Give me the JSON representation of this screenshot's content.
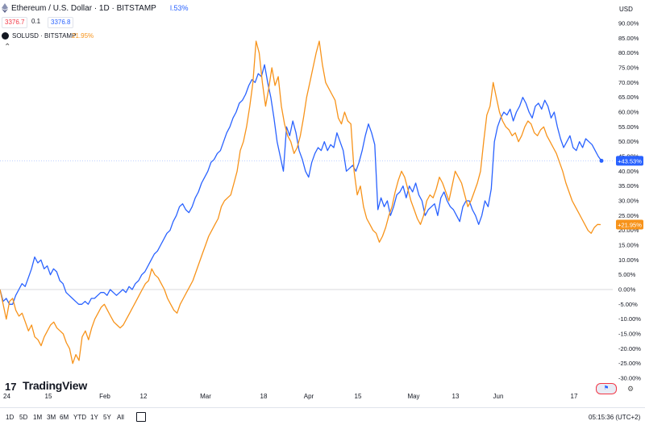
{
  "header": {
    "title": "Ethereum / U.S. Dollar · 1D · BITSTAMP",
    "change": "l.53%",
    "sell_price": "3376.7",
    "spread": "0.1",
    "buy_price": "3376.8",
    "currency": "USD"
  },
  "compare": {
    "symbol": "SOLUSD · BITSTAMP",
    "change": "21.95%"
  },
  "logo": {
    "text": "TradingView",
    "mark": "17"
  },
  "footer": {
    "ranges": [
      "1D",
      "5D",
      "1M",
      "3M",
      "6M",
      "YTD",
      "1Y",
      "5Y",
      "All"
    ],
    "time": "05:15:36 (UTC+2)"
  },
  "colors": {
    "eth": "#2962ff",
    "sol": "#f7931a",
    "grid": "#e0e3eb",
    "zero": "#b2b5be"
  },
  "chart_data": {
    "type": "line",
    "x_ticks": [
      "24",
      "15",
      "Feb",
      "12",
      "Mar",
      "18",
      "Apr",
      "15",
      "May",
      "13",
      "Jun",
      "17"
    ],
    "y_ticks": [
      "90.00%",
      "85.00%",
      "80.00%",
      "75.00%",
      "70.00%",
      "65.00%",
      "60.00%",
      "55.00%",
      "50.00%",
      "45.00%",
      "40.00%",
      "35.00%",
      "30.00%",
      "25.00%",
      "20.00%",
      "15.00%",
      "10.00%",
      "5.00%",
      "0.00%",
      "-5.00%",
      "-10.00%",
      "-15.00%",
      "-20.00%",
      "-25.00%",
      "-30.00%"
    ],
    "ylim": [
      -30,
      90
    ],
    "last_labels": {
      "eth": "+43.53%",
      "sol": "+21.95%"
    },
    "series": [
      {
        "key": "eth",
        "values": [
          0,
          -4,
          -3,
          -5,
          -5,
          -2,
          0,
          2,
          1,
          4,
          7,
          11,
          9,
          10,
          7,
          8,
          5,
          7,
          6,
          3,
          2,
          -1,
          -2,
          -3,
          -4,
          -5,
          -5,
          -4,
          -5,
          -3,
          -3,
          -2,
          -1,
          -1,
          -2,
          0,
          -1,
          -2,
          -1,
          0,
          -1,
          1,
          0,
          2,
          3,
          5,
          6,
          8,
          10,
          12,
          13,
          15,
          17,
          19,
          20,
          23,
          25,
          28,
          29,
          27,
          26,
          28,
          31,
          33,
          36,
          38,
          40,
          43,
          44,
          46,
          47,
          50,
          53,
          55,
          58,
          60,
          63,
          64,
          66,
          69,
          71,
          70,
          73,
          72,
          76,
          70,
          65,
          58,
          50,
          45,
          40,
          55,
          52,
          57,
          53,
          47,
          44,
          40,
          38,
          43,
          46,
          48,
          47,
          50,
          47,
          49,
          48,
          53,
          50,
          47,
          40,
          41,
          42,
          40,
          43,
          47,
          52,
          56,
          53,
          49,
          27,
          31,
          28,
          30,
          25,
          28,
          32,
          33,
          35,
          31,
          35,
          33,
          36,
          32,
          30,
          25,
          27,
          28,
          29,
          25,
          31,
          33,
          30,
          28,
          27,
          25,
          23,
          28,
          30,
          30,
          27,
          25,
          22,
          25,
          30,
          28,
          34,
          50,
          55,
          58,
          60,
          59,
          61,
          57,
          60,
          62,
          65,
          63,
          60,
          58,
          62,
          63,
          61,
          64,
          62,
          58,
          60,
          55,
          51,
          48,
          50,
          52,
          48,
          47,
          50,
          48,
          51,
          50,
          49,
          47,
          45,
          43.53
        ]
      },
      {
        "key": "sol",
        "values": [
          0,
          -5,
          -10,
          -4,
          -3,
          -7,
          -9,
          -8,
          -11,
          -14,
          -12,
          -16,
          -17,
          -19,
          -16,
          -14,
          -12,
          -11,
          -13,
          -14,
          -15,
          -18,
          -20,
          -25,
          -22,
          -24,
          -16,
          -14,
          -17,
          -13,
          -10,
          -8,
          -6,
          -5,
          -7,
          -9,
          -11,
          -12,
          -13,
          -12,
          -10,
          -8,
          -6,
          -4,
          -2,
          0,
          2,
          3,
          7,
          5,
          4,
          2,
          0,
          -3,
          -5,
          -7,
          -8,
          -5,
          -3,
          -1,
          1,
          3,
          6,
          9,
          12,
          15,
          18,
          20,
          22,
          24,
          28,
          30,
          31,
          32,
          36,
          40,
          47,
          50,
          55,
          62,
          70,
          84,
          80,
          70,
          62,
          68,
          75,
          69,
          72,
          62,
          56,
          52,
          50,
          46,
          48,
          52,
          58,
          65,
          70,
          75,
          80,
          84,
          76,
          70,
          68,
          66,
          64,
          58,
          56,
          60,
          57,
          56,
          40,
          32,
          35,
          28,
          24,
          22,
          20,
          19,
          16,
          18,
          21,
          25,
          28,
          33,
          37,
          40,
          38,
          34,
          30,
          27,
          24,
          22,
          25,
          30,
          32,
          31,
          34,
          38,
          36,
          33,
          30,
          35,
          40,
          38,
          36,
          32,
          28,
          30,
          33,
          36,
          40,
          50,
          59,
          62,
          70,
          65,
          60,
          57,
          55,
          54,
          52,
          53,
          50,
          52,
          55,
          57,
          56,
          53,
          52,
          54,
          55,
          52,
          50,
          48,
          46,
          43,
          40,
          36,
          33,
          30,
          28,
          26,
          24,
          22,
          20,
          19,
          21,
          22,
          21.95
        ]
      }
    ]
  }
}
